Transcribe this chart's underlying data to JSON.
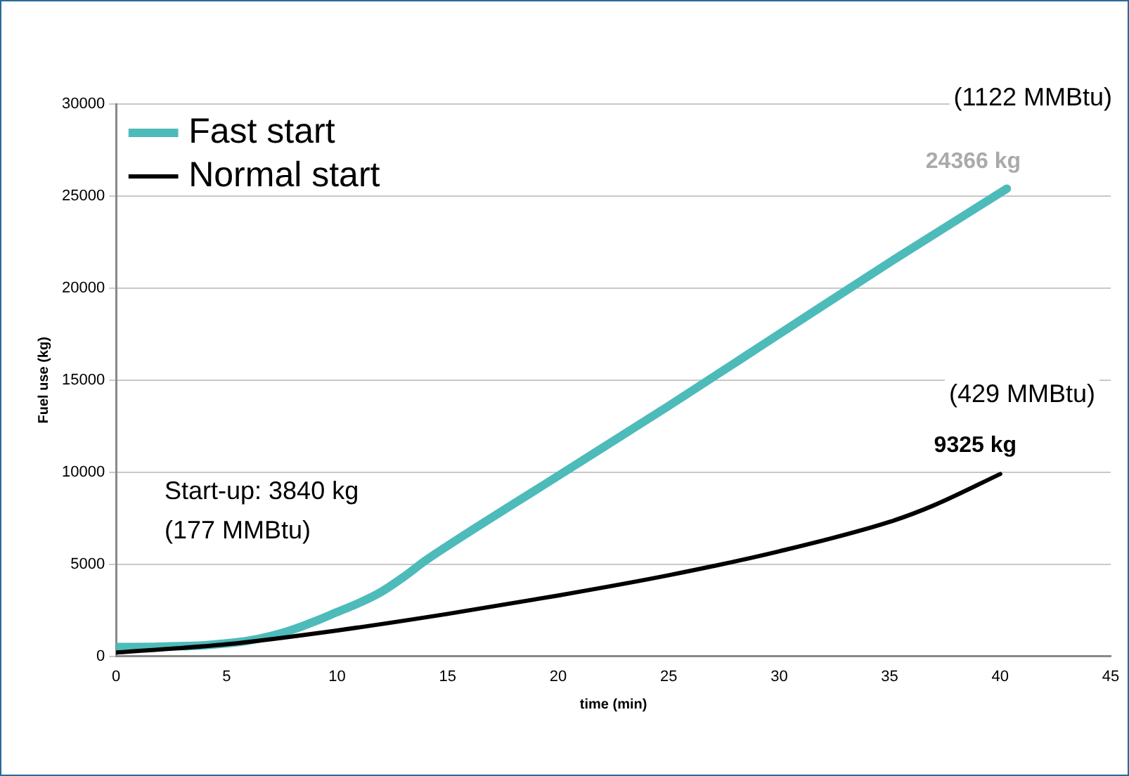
{
  "chart_data": {
    "type": "line",
    "xlabel": "time (min)",
    "ylabel": "Fuel use (kg)",
    "series": [
      {
        "name": "Fast start",
        "color": "#4dbbb9",
        "x": [
          0,
          2,
          4,
          5,
          6,
          7,
          8,
          9,
          10,
          11,
          12,
          13,
          14,
          15,
          20,
          25,
          30,
          35,
          40.3
        ],
        "values": [
          500,
          520,
          600,
          700,
          850,
          1100,
          1450,
          1900,
          2400,
          2900,
          3500,
          4300,
          5200,
          6000,
          9800,
          13600,
          17500,
          21400,
          25400
        ]
      },
      {
        "name": "Normal start",
        "color": "#000000",
        "x": [
          0,
          5,
          10,
          15,
          20,
          25,
          30,
          35,
          37,
          40
        ],
        "values": [
          200,
          650,
          1400,
          2300,
          3300,
          4400,
          5700,
          7300,
          8200,
          9900
        ]
      }
    ],
    "xlim": [
      0,
      45
    ],
    "xticks": [
      0,
      5,
      10,
      15,
      20,
      25,
      30,
      35,
      40,
      45
    ],
    "ylim": [
      0,
      30000
    ],
    "yticks": [
      0,
      5000,
      10000,
      15000,
      20000,
      25000,
      30000
    ],
    "grid": "y",
    "legend": "top left",
    "marker": "none",
    "line_style": "solid",
    "annotations": [
      "(1122 MMBtu)",
      "24366 kg",
      "(429 MMBtu)",
      "9325 kg",
      "Start-up: 3840 kg",
      "(177 MMBtu)"
    ]
  }
}
